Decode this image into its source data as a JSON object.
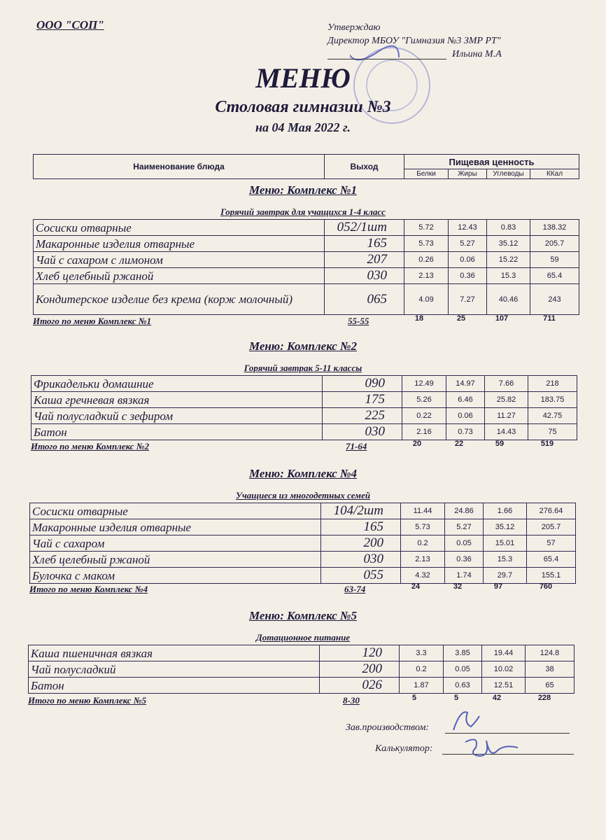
{
  "header": {
    "organization": "ООО \"СОП\"",
    "approve": "Утверждаю",
    "director": "Директор МБОУ \"Гимназия №3 ЗМР РТ\"",
    "director_name": "Ильина М.А",
    "title": "МЕНЮ",
    "subtitle": "Столовая гимназии №3",
    "date": "на 04 Мая 2022 г."
  },
  "table_header": {
    "name": "Наименование блюда",
    "output": "Выход",
    "nutrition": "Пищевая ценность",
    "cols": [
      "Белки",
      "Жиры",
      "Углеводы",
      "ККал"
    ]
  },
  "sections": [
    {
      "title": "Меню: Комплекс №1",
      "subtitle": "Горячий завтрак для учащихся 1-4 класс",
      "rows": [
        [
          "Сосиски  отварные",
          "052/1шт",
          "5.72",
          "12.43",
          "0.83",
          "138.32"
        ],
        [
          "Макаронные изделия отварные",
          "165",
          "5.73",
          "5.27",
          "35.12",
          "205.7"
        ],
        [
          "Чай с сахаром с лимоном",
          "207",
          "0.26",
          "0.06",
          "15.22",
          "59"
        ],
        [
          "Хлеб  целебный ржаной",
          "030",
          "2.13",
          "0.36",
          "15.3",
          "65.4"
        ],
        [
          "Кондитерское изделие без крема (корж молочный)",
          "065",
          "4.09",
          "7.27",
          "40.46",
          "243"
        ]
      ],
      "total": [
        "Итого по меню Комплекс №1",
        "55-55",
        "18",
        "25",
        "107",
        "711"
      ]
    },
    {
      "title": "Меню: Комплекс №2",
      "subtitle": "Горячий завтрак 5-11 классы",
      "rows": [
        [
          "Фрикадельки домашние",
          "090",
          "12.49",
          "14.97",
          "7.66",
          "218"
        ],
        [
          "Каша гречневая вязкая",
          "175",
          "5.26",
          "6.46",
          "25.82",
          "183.75"
        ],
        [
          "Чай полусладкий с зефиром",
          "225",
          "0.22",
          "0.06",
          "11.27",
          "42.75"
        ],
        [
          "Батон",
          "030",
          "2.16",
          "0.73",
          "14.43",
          "75"
        ]
      ],
      "total": [
        "Итого по меню Комплекс №2",
        "71-64",
        "20",
        "22",
        "59",
        "519"
      ]
    },
    {
      "title": "Меню: Комплекс №4",
      "subtitle": "Учащиеся из многодетных семей",
      "rows": [
        [
          "Сосиски  отварные",
          "104/2шт",
          "11.44",
          "24.86",
          "1.66",
          "276.64"
        ],
        [
          "Макаронные изделия отварные",
          "165",
          "5.73",
          "5.27",
          "35.12",
          "205.7"
        ],
        [
          "Чай с сахаром",
          "200",
          "0.2",
          "0.05",
          "15.01",
          "57"
        ],
        [
          "Хлеб  целебный ржаной",
          "030",
          "2.13",
          "0.36",
          "15.3",
          "65.4"
        ],
        [
          "Булочка с маком",
          "055",
          "4.32",
          "1.74",
          "29.7",
          "155.1"
        ]
      ],
      "total": [
        "Итого по меню Комплекс №4",
        "63-74",
        "24",
        "32",
        "97",
        "760"
      ]
    },
    {
      "title": "Меню: Комплекс №5",
      "subtitle": "Дотационное питание",
      "rows": [
        [
          "Каша пшеничная вязкая",
          "120",
          "3.3",
          "3.85",
          "19.44",
          "124.8"
        ],
        [
          "Чай полусладкий",
          "200",
          "0.2",
          "0.05",
          "10.02",
          "38"
        ],
        [
          "Батон",
          "026",
          "1.87",
          "0.63",
          "12.51",
          "65"
        ]
      ],
      "total": [
        "Итого по меню Комплекс №5",
        "8-30",
        "5",
        "5",
        "42",
        "228"
      ]
    }
  ],
  "footer": {
    "production": "Зав.производством:",
    "calculator": "Калькулятор:"
  },
  "colors": {
    "paper": "#f4efe6",
    "ink": "#1d1a3a",
    "stamp": "#8a8fd0"
  }
}
